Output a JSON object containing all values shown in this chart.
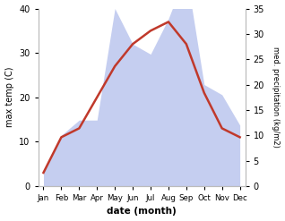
{
  "months": [
    "Jan",
    "Feb",
    "Mar",
    "Apr",
    "May",
    "Jun",
    "Jul",
    "Aug",
    "Sep",
    "Oct",
    "Nov",
    "Dec"
  ],
  "temperature": [
    3,
    11,
    13,
    20,
    27,
    32,
    35,
    37,
    32,
    21,
    13,
    11
  ],
  "precipitation": [
    3,
    10,
    13,
    13,
    35,
    28,
    26,
    33,
    42,
    20,
    18,
    12
  ],
  "temp_color": "#c0392b",
  "precip_fill_color": "#c5cef0",
  "ylabel_left": "max temp (C)",
  "ylabel_right": "med. precipitation (kg/m2)",
  "xlabel": "date (month)",
  "ylim_left": [
    0,
    40
  ],
  "ylim_right": [
    0,
    35
  ],
  "yticks_left": [
    0,
    10,
    20,
    30,
    40
  ],
  "yticks_right": [
    0,
    5,
    10,
    15,
    20,
    25,
    30,
    35
  ],
  "bg_color": "#ffffff"
}
